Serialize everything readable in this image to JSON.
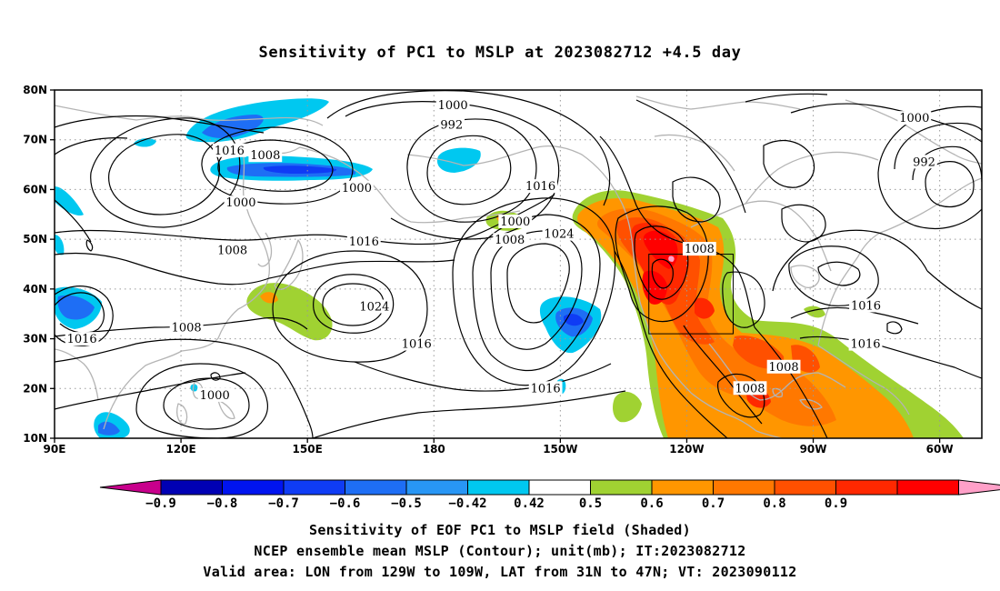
{
  "title": "Sensitivity of PC1 to MSLP at 2023082712 +4.5 day",
  "map": {
    "lat_labels": [
      "80N",
      "70N",
      "60N",
      "50N",
      "40N",
      "30N",
      "20N",
      "10N"
    ],
    "lon_labels": [
      "90E",
      "120E",
      "150E",
      "180",
      "150W",
      "120W",
      "90W",
      "60W"
    ],
    "lon_range": [
      "90E",
      "50W"
    ],
    "lat_range": [
      "10N",
      "80N"
    ],
    "grid": "dotted",
    "coastline_color": "#b4b4b4",
    "contour_color": "#000000",
    "contour_labels": [
      {
        "text": "1000",
        "lon": -175.5,
        "lat": 76.9
      },
      {
        "text": "992",
        "lon": -175.8,
        "lat": 73.0
      },
      {
        "text": "1000",
        "lon": -66.0,
        "lat": 74.3
      },
      {
        "text": "992",
        "lon": -63.7,
        "lat": 65.5
      },
      {
        "text": "1016",
        "lon": 131.5,
        "lat": 67.8
      },
      {
        "text": "1008",
        "lon": 140.0,
        "lat": 66.8
      },
      {
        "text": "1000",
        "lon": 161.7,
        "lat": 60.3
      },
      {
        "text": "1000",
        "lon": 134.2,
        "lat": 57.3
      },
      {
        "text": "1016",
        "lon": -154.7,
        "lat": 60.6
      },
      {
        "text": "1000",
        "lon": -160.7,
        "lat": 53.5
      },
      {
        "text": "1008",
        "lon": -162.0,
        "lat": 49.8
      },
      {
        "text": "1024",
        "lon": -150.3,
        "lat": 51.0
      },
      {
        "text": "1016",
        "lon": 163.4,
        "lat": 49.5
      },
      {
        "text": "1008",
        "lon": 132.2,
        "lat": 47.7
      },
      {
        "text": "1008",
        "lon": -117.0,
        "lat": 48.0
      },
      {
        "text": "1024",
        "lon": 165.9,
        "lat": 36.4
      },
      {
        "text": "1008",
        "lon": 121.3,
        "lat": 32.2
      },
      {
        "text": "1016",
        "lon": 96.5,
        "lat": 29.9
      },
      {
        "text": "1016",
        "lon": 175.9,
        "lat": 28.9
      },
      {
        "text": "1016",
        "lon": -77.5,
        "lat": 36.6
      },
      {
        "text": "1016",
        "lon": -77.6,
        "lat": 28.9
      },
      {
        "text": "1008",
        "lon": -97.0,
        "lat": 24.3
      },
      {
        "text": "1008",
        "lon": -105.0,
        "lat": 20.0
      },
      {
        "text": "1016",
        "lon": -153.5,
        "lat": 20.0
      },
      {
        "text": "1000",
        "lon": 128.0,
        "lat": 18.6
      }
    ],
    "valid_box": {
      "lon_west": "129W",
      "lon_east": "109W",
      "lat_south": "31N",
      "lat_north": "47N"
    }
  },
  "colorbar": {
    "labels": [
      "−0.9",
      "−0.8",
      "−0.7",
      "−0.6",
      "−0.5",
      "−0.42",
      "0.42",
      "0.5",
      "0.6",
      "0.7",
      "0.8",
      "0.9"
    ],
    "colors": [
      "#c8008c",
      "#0000b4",
      "#0014f0",
      "#0f3cf5",
      "#1e6ef5",
      "#2896f5",
      "#00c8f0",
      "#ffffff",
      "#a0d232",
      "#ff9600",
      "#ff7800",
      "#ff5000",
      "#ff2800",
      "#ff0000",
      "#ffa0c8"
    ]
  },
  "captions": {
    "line1": "Sensitivity of EOF PC1 to MSLP field (Shaded)",
    "line2": "NCEP ensemble mean MSLP (Contour); unit(mb); IT:2023082712",
    "line3": "Valid area: LON from 129W to 109W, LAT from 31N to 47N; VT: 2023090112"
  }
}
